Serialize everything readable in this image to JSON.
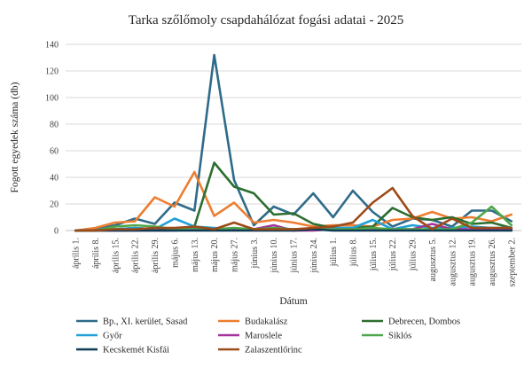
{
  "chart_data": {
    "type": "line",
    "title": "Tarka szőlőmoly csapdahálózat fogási adatai - 2025",
    "xlabel": "Dátum",
    "ylabel": "Fogott egyedek száma (db)",
    "ylim": [
      0,
      140
    ],
    "yticks": [
      0,
      20,
      40,
      60,
      80,
      100,
      120,
      140
    ],
    "grid": "horizontal",
    "legend_position": "bottom",
    "x": [
      "április 1.",
      "április 8.",
      "április 15.",
      "április 22.",
      "április 29.",
      "május 6.",
      "május 13.",
      "május 20.",
      "május 27.",
      "június 3.",
      "június 10.",
      "június 17.",
      "június 24.",
      "július 1.",
      "július 8.",
      "július 15.",
      "július 22.",
      "július 29.",
      "augusztus 5.",
      "augusztus 12.",
      "augusztus 19.",
      "augusztus 26.",
      "szeptember 2."
    ],
    "series": [
      {
        "name": "Bp., XI. kerület, Sasad",
        "color": "#2e6b8a",
        "values": [
          0,
          1,
          4,
          9,
          5,
          21,
          15,
          132,
          38,
          4,
          18,
          12,
          28,
          10,
          30,
          14,
          3,
          9,
          8,
          3,
          15,
          15,
          7
        ]
      },
      {
        "name": "Budakalász",
        "color": "#ed7d31",
        "values": [
          0,
          2,
          6,
          7,
          25,
          18,
          44,
          11,
          21,
          6,
          8,
          6,
          3,
          4,
          4,
          3,
          8,
          9,
          14,
          9,
          10,
          7,
          12
        ]
      },
      {
        "name": "Debrecen, Dombos",
        "color": "#2c6e2f",
        "values": [
          0,
          0,
          1,
          2,
          1,
          1,
          3,
          51,
          33,
          28,
          12,
          13,
          5,
          2,
          2,
          3,
          17,
          10,
          8,
          10,
          5,
          6,
          2
        ]
      },
      {
        "name": "Győr",
        "color": "#1fa1d8",
        "values": [
          0,
          0,
          1,
          2,
          1,
          9,
          3,
          2,
          1,
          1,
          1,
          1,
          1,
          2,
          2,
          8,
          1,
          4,
          2,
          2,
          3,
          2,
          2
        ]
      },
      {
        "name": "Maroslele",
        "color": "#a1339a",
        "values": [
          0,
          0,
          0,
          0,
          0,
          0,
          1,
          1,
          1,
          1,
          4,
          0,
          0,
          1,
          1,
          1,
          1,
          1,
          5,
          1,
          1,
          1,
          1
        ]
      },
      {
        "name": "Siklós",
        "color": "#4ea64a",
        "values": [
          0,
          0,
          3,
          4,
          3,
          1,
          2,
          1,
          2,
          1,
          2,
          1,
          1,
          1,
          1,
          2,
          1,
          1,
          1,
          1,
          6,
          18,
          4
        ]
      },
      {
        "name": "Kecskemét Kisfái",
        "color": "#0d3b54",
        "values": [
          0,
          0,
          0,
          0,
          0,
          0,
          0,
          0,
          0,
          0,
          0,
          0,
          1,
          0,
          0,
          0,
          0,
          0,
          0,
          0,
          0,
          0,
          0
        ]
      },
      {
        "name": "Zalaszentlőrinc",
        "color": "#9c4a18",
        "values": [
          0,
          0,
          1,
          1,
          2,
          2,
          3,
          1,
          6,
          1,
          1,
          1,
          2,
          3,
          6,
          21,
          32,
          11,
          1,
          9,
          2,
          2,
          2
        ]
      }
    ]
  }
}
